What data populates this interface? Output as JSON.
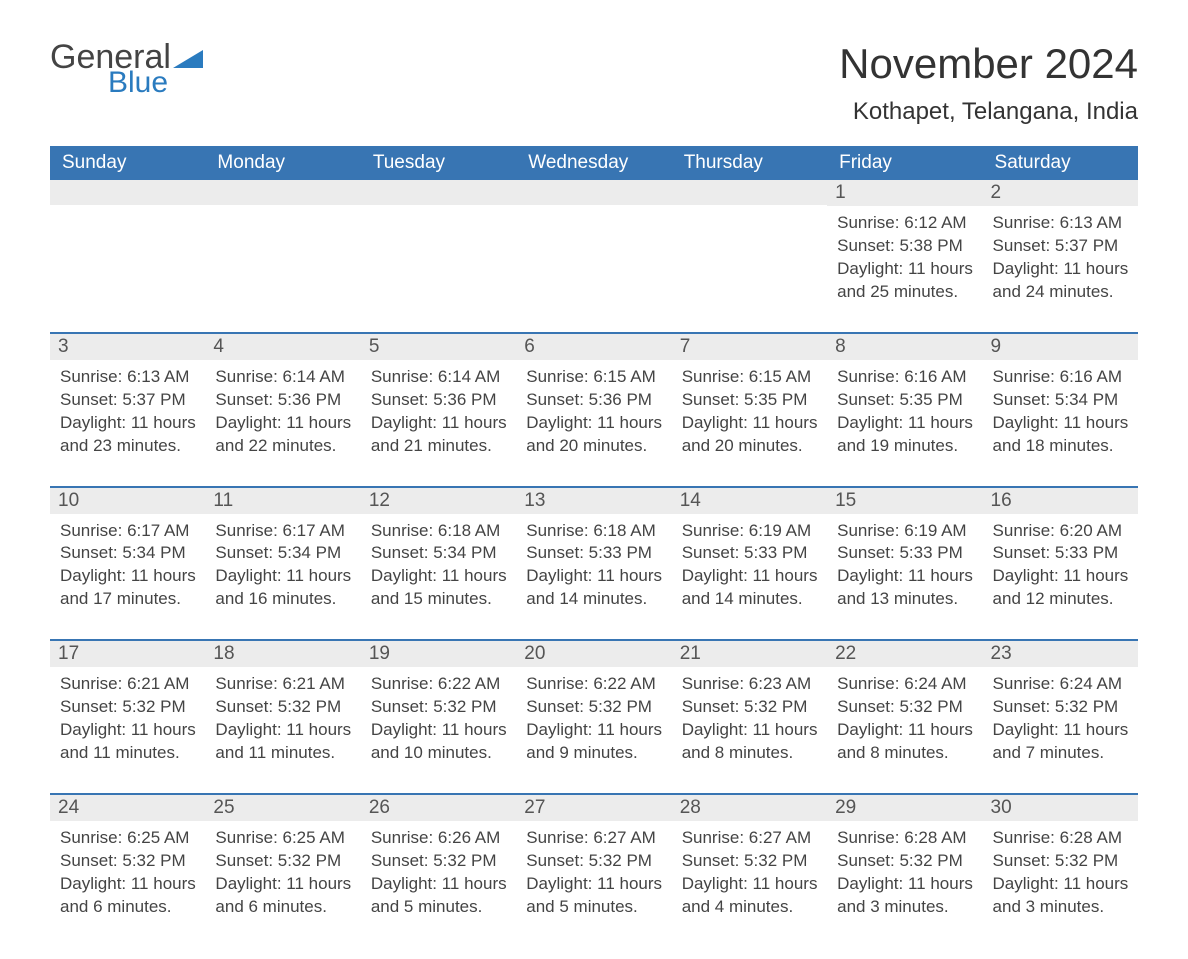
{
  "logo": {
    "text1": "General",
    "text2": "Blue",
    "tri_color": "#2a7bbf"
  },
  "title": "November 2024",
  "location": "Kothapet, Telangana, India",
  "colors": {
    "header_bg": "#3875b3",
    "header_text": "#ffffff",
    "date_bg": "#ececec",
    "rule": "#3875b3",
    "body_text": "#444444"
  },
  "day_names": [
    "Sunday",
    "Monday",
    "Tuesday",
    "Wednesday",
    "Thursday",
    "Friday",
    "Saturday"
  ],
  "weeks": [
    [
      {
        "date": "",
        "sunrise": "",
        "sunset": "",
        "daylight": ""
      },
      {
        "date": "",
        "sunrise": "",
        "sunset": "",
        "daylight": ""
      },
      {
        "date": "",
        "sunrise": "",
        "sunset": "",
        "daylight": ""
      },
      {
        "date": "",
        "sunrise": "",
        "sunset": "",
        "daylight": ""
      },
      {
        "date": "",
        "sunrise": "",
        "sunset": "",
        "daylight": ""
      },
      {
        "date": "1",
        "sunrise": "Sunrise: 6:12 AM",
        "sunset": "Sunset: 5:38 PM",
        "daylight": "Daylight: 11 hours and 25 minutes."
      },
      {
        "date": "2",
        "sunrise": "Sunrise: 6:13 AM",
        "sunset": "Sunset: 5:37 PM",
        "daylight": "Daylight: 11 hours and 24 minutes."
      }
    ],
    [
      {
        "date": "3",
        "sunrise": "Sunrise: 6:13 AM",
        "sunset": "Sunset: 5:37 PM",
        "daylight": "Daylight: 11 hours and 23 minutes."
      },
      {
        "date": "4",
        "sunrise": "Sunrise: 6:14 AM",
        "sunset": "Sunset: 5:36 PM",
        "daylight": "Daylight: 11 hours and 22 minutes."
      },
      {
        "date": "5",
        "sunrise": "Sunrise: 6:14 AM",
        "sunset": "Sunset: 5:36 PM",
        "daylight": "Daylight: 11 hours and 21 minutes."
      },
      {
        "date": "6",
        "sunrise": "Sunrise: 6:15 AM",
        "sunset": "Sunset: 5:36 PM",
        "daylight": "Daylight: 11 hours and 20 minutes."
      },
      {
        "date": "7",
        "sunrise": "Sunrise: 6:15 AM",
        "sunset": "Sunset: 5:35 PM",
        "daylight": "Daylight: 11 hours and 20 minutes."
      },
      {
        "date": "8",
        "sunrise": "Sunrise: 6:16 AM",
        "sunset": "Sunset: 5:35 PM",
        "daylight": "Daylight: 11 hours and 19 minutes."
      },
      {
        "date": "9",
        "sunrise": "Sunrise: 6:16 AM",
        "sunset": "Sunset: 5:34 PM",
        "daylight": "Daylight: 11 hours and 18 minutes."
      }
    ],
    [
      {
        "date": "10",
        "sunrise": "Sunrise: 6:17 AM",
        "sunset": "Sunset: 5:34 PM",
        "daylight": "Daylight: 11 hours and 17 minutes."
      },
      {
        "date": "11",
        "sunrise": "Sunrise: 6:17 AM",
        "sunset": "Sunset: 5:34 PM",
        "daylight": "Daylight: 11 hours and 16 minutes."
      },
      {
        "date": "12",
        "sunrise": "Sunrise: 6:18 AM",
        "sunset": "Sunset: 5:34 PM",
        "daylight": "Daylight: 11 hours and 15 minutes."
      },
      {
        "date": "13",
        "sunrise": "Sunrise: 6:18 AM",
        "sunset": "Sunset: 5:33 PM",
        "daylight": "Daylight: 11 hours and 14 minutes."
      },
      {
        "date": "14",
        "sunrise": "Sunrise: 6:19 AM",
        "sunset": "Sunset: 5:33 PM",
        "daylight": "Daylight: 11 hours and 14 minutes."
      },
      {
        "date": "15",
        "sunrise": "Sunrise: 6:19 AM",
        "sunset": "Sunset: 5:33 PM",
        "daylight": "Daylight: 11 hours and 13 minutes."
      },
      {
        "date": "16",
        "sunrise": "Sunrise: 6:20 AM",
        "sunset": "Sunset: 5:33 PM",
        "daylight": "Daylight: 11 hours and 12 minutes."
      }
    ],
    [
      {
        "date": "17",
        "sunrise": "Sunrise: 6:21 AM",
        "sunset": "Sunset: 5:32 PM",
        "daylight": "Daylight: 11 hours and 11 minutes."
      },
      {
        "date": "18",
        "sunrise": "Sunrise: 6:21 AM",
        "sunset": "Sunset: 5:32 PM",
        "daylight": "Daylight: 11 hours and 11 minutes."
      },
      {
        "date": "19",
        "sunrise": "Sunrise: 6:22 AM",
        "sunset": "Sunset: 5:32 PM",
        "daylight": "Daylight: 11 hours and 10 minutes."
      },
      {
        "date": "20",
        "sunrise": "Sunrise: 6:22 AM",
        "sunset": "Sunset: 5:32 PM",
        "daylight": "Daylight: 11 hours and 9 minutes."
      },
      {
        "date": "21",
        "sunrise": "Sunrise: 6:23 AM",
        "sunset": "Sunset: 5:32 PM",
        "daylight": "Daylight: 11 hours and 8 minutes."
      },
      {
        "date": "22",
        "sunrise": "Sunrise: 6:24 AM",
        "sunset": "Sunset: 5:32 PM",
        "daylight": "Daylight: 11 hours and 8 minutes."
      },
      {
        "date": "23",
        "sunrise": "Sunrise: 6:24 AM",
        "sunset": "Sunset: 5:32 PM",
        "daylight": "Daylight: 11 hours and 7 minutes."
      }
    ],
    [
      {
        "date": "24",
        "sunrise": "Sunrise: 6:25 AM",
        "sunset": "Sunset: 5:32 PM",
        "daylight": "Daylight: 11 hours and 6 minutes."
      },
      {
        "date": "25",
        "sunrise": "Sunrise: 6:25 AM",
        "sunset": "Sunset: 5:32 PM",
        "daylight": "Daylight: 11 hours and 6 minutes."
      },
      {
        "date": "26",
        "sunrise": "Sunrise: 6:26 AM",
        "sunset": "Sunset: 5:32 PM",
        "daylight": "Daylight: 11 hours and 5 minutes."
      },
      {
        "date": "27",
        "sunrise": "Sunrise: 6:27 AM",
        "sunset": "Sunset: 5:32 PM",
        "daylight": "Daylight: 11 hours and 5 minutes."
      },
      {
        "date": "28",
        "sunrise": "Sunrise: 6:27 AM",
        "sunset": "Sunset: 5:32 PM",
        "daylight": "Daylight: 11 hours and 4 minutes."
      },
      {
        "date": "29",
        "sunrise": "Sunrise: 6:28 AM",
        "sunset": "Sunset: 5:32 PM",
        "daylight": "Daylight: 11 hours and 3 minutes."
      },
      {
        "date": "30",
        "sunrise": "Sunrise: 6:28 AM",
        "sunset": "Sunset: 5:32 PM",
        "daylight": "Daylight: 11 hours and 3 minutes."
      }
    ]
  ]
}
